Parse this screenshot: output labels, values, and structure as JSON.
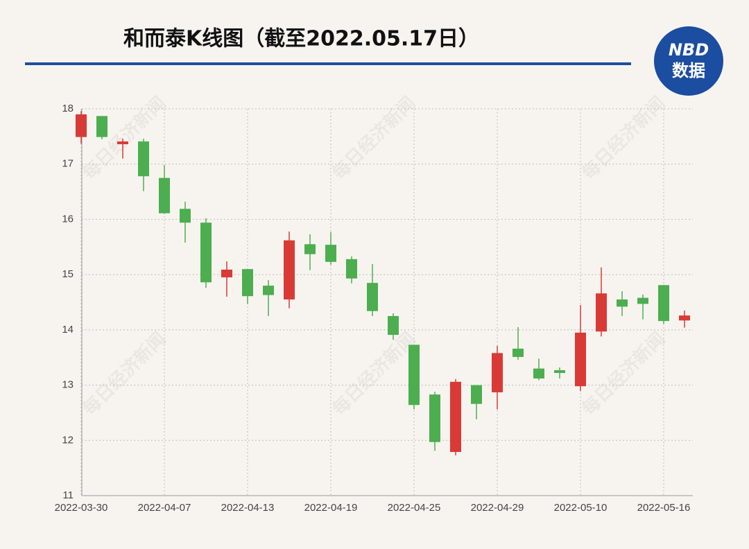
{
  "chart_data": {
    "type": "candlestick",
    "title": "和而泰K线图（截至2022.05.17日）",
    "categories": [
      "2022-03-30",
      null,
      null,
      null,
      "2022-04-07",
      null,
      null,
      null,
      "2022-04-13",
      null,
      null,
      null,
      "2022-04-19",
      null,
      null,
      null,
      "2022-04-25",
      null,
      null,
      null,
      "2022-04-29",
      null,
      null,
      null,
      "2022-05-10",
      null,
      null,
      null,
      "2022-05-16",
      null
    ],
    "open": [
      17.49,
      17.87,
      17.36,
      17.41,
      16.75,
      16.19,
      15.94,
      14.95,
      15.1,
      14.8,
      14.55,
      15.55,
      15.54,
      15.28,
      14.85,
      14.25,
      13.73,
      12.83,
      11.79,
      13.0,
      12.87,
      13.66,
      13.3,
      13.27,
      12.98,
      13.97,
      14.55,
      14.58,
      14.81,
      14.17
    ],
    "high": [
      17.96,
      17.87,
      17.46,
      17.46,
      16.98,
      16.32,
      16.02,
      15.24,
      15.1,
      14.9,
      15.78,
      15.73,
      15.77,
      15.33,
      15.19,
      14.3,
      13.73,
      12.88,
      13.11,
      13.0,
      13.71,
      14.05,
      13.48,
      13.32,
      14.45,
      15.13,
      14.7,
      14.64,
      14.81,
      14.35
    ],
    "low": [
      17.37,
      17.45,
      17.1,
      16.51,
      16.1,
      15.58,
      14.76,
      14.6,
      14.47,
      14.25,
      14.39,
      15.08,
      15.18,
      14.84,
      14.25,
      13.82,
      12.56,
      11.81,
      11.73,
      12.38,
      12.56,
      13.46,
      13.09,
      13.12,
      12.89,
      13.88,
      14.25,
      14.19,
      14.11,
      14.04
    ],
    "close": [
      17.9,
      17.49,
      17.41,
      16.78,
      16.11,
      15.94,
      14.86,
      15.09,
      14.61,
      14.63,
      15.62,
      15.37,
      15.23,
      14.93,
      14.34,
      13.91,
      12.64,
      11.97,
      13.06,
      12.66,
      13.58,
      13.51,
      13.12,
      13.22,
      13.95,
      14.66,
      14.42,
      14.47,
      14.16,
      14.26
    ],
    "up_color": "#d93a36",
    "down_color": "#4cae4f",
    "ylim": [
      11,
      18
    ],
    "yticks": [
      11,
      12,
      13,
      14,
      15,
      16,
      17,
      18
    ],
    "grid": true
  },
  "logo": {
    "brand": "NBD",
    "label": "数据"
  },
  "watermark": "每日经济新闻"
}
